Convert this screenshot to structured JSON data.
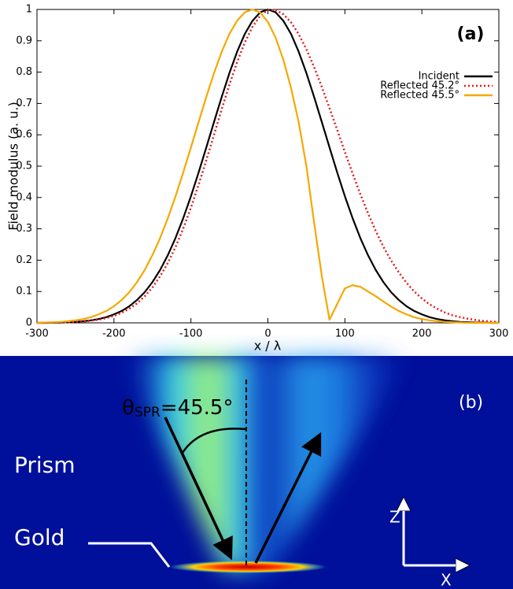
{
  "chart_data": {
    "type": "line",
    "title": "(a)",
    "x_label": "x / λ",
    "y_label": "Field modulus (a. u.)",
    "x": [
      -300,
      -290,
      -280,
      -270,
      -260,
      -250,
      -240,
      -230,
      -220,
      -210,
      -200,
      -190,
      -180,
      -170,
      -160,
      -150,
      -140,
      -130,
      -120,
      -110,
      -100,
      -90,
      -80,
      -70,
      -60,
      -50,
      -40,
      -30,
      -20,
      -10,
      0,
      10,
      20,
      30,
      40,
      50,
      60,
      70,
      80,
      90,
      100,
      110,
      120,
      130,
      140,
      150,
      160,
      170,
      180,
      190,
      200,
      210,
      220,
      230,
      240,
      250,
      260,
      270,
      280,
      290,
      300
    ],
    "series": [
      {
        "name": "Incident",
        "color": "#000000",
        "style": "solid",
        "values": [
          0,
          0,
          0.001,
          0.001,
          0.002,
          0.003,
          0.005,
          0.008,
          0.012,
          0.018,
          0.027,
          0.038,
          0.053,
          0.073,
          0.098,
          0.13,
          0.169,
          0.216,
          0.271,
          0.334,
          0.404,
          0.48,
          0.56,
          0.641,
          0.721,
          0.797,
          0.865,
          0.922,
          0.964,
          0.991,
          1,
          0.991,
          0.964,
          0.922,
          0.865,
          0.797,
          0.721,
          0.641,
          0.56,
          0.48,
          0.404,
          0.334,
          0.271,
          0.216,
          0.169,
          0.13,
          0.098,
          0.073,
          0.053,
          0.038,
          0.027,
          0.018,
          0.012,
          0.008,
          0.005,
          0.003,
          0.002,
          0.001,
          0.001,
          0,
          0
        ]
      },
      {
        "name": "Reflected 45.2°",
        "color": "#e41a1c",
        "style": "dotted",
        "values": [
          0,
          0,
          0.001,
          0.001,
          0.002,
          0.003,
          0.004,
          0.007,
          0.01,
          0.015,
          0.022,
          0.032,
          0.045,
          0.062,
          0.085,
          0.113,
          0.149,
          0.191,
          0.242,
          0.301,
          0.368,
          0.441,
          0.519,
          0.6,
          0.682,
          0.76,
          0.832,
          0.895,
          0.945,
          0.98,
          0.998,
          0.998,
          0.985,
          0.959,
          0.921,
          0.873,
          0.816,
          0.753,
          0.685,
          0.616,
          0.545,
          0.477,
          0.411,
          0.35,
          0.294,
          0.243,
          0.199,
          0.161,
          0.128,
          0.1,
          0.078,
          0.059,
          0.045,
          0.033,
          0.024,
          0.018,
          0.013,
          0.009,
          0.006,
          0.004,
          0.003
        ]
      },
      {
        "name": "Reflected 45.5°",
        "color": "#f5a800",
        "style": "solid",
        "values": [
          0,
          0.001,
          0.002,
          0.003,
          0.005,
          0.008,
          0.012,
          0.018,
          0.027,
          0.038,
          0.053,
          0.073,
          0.098,
          0.13,
          0.169,
          0.216,
          0.271,
          0.334,
          0.404,
          0.48,
          0.56,
          0.641,
          0.721,
          0.797,
          0.865,
          0.922,
          0.964,
          0.991,
          1,
          0.99,
          0.96,
          0.91,
          0.84,
          0.75,
          0.64,
          0.5,
          0.32,
          0.15,
          0.01,
          0.06,
          0.11,
          0.12,
          0.115,
          0.1,
          0.085,
          0.068,
          0.052,
          0.038,
          0.027,
          0.018,
          0.012,
          0.008,
          0.005,
          0.003,
          0.002,
          0.001,
          0,
          0,
          0,
          0,
          0
        ]
      }
    ],
    "xlim": [
      -300,
      300
    ],
    "ylim": [
      0,
      1
    ],
    "xticks": [
      -300,
      -200,
      -100,
      0,
      100,
      200,
      300
    ],
    "yticks": [
      0,
      0.1,
      0.2,
      0.3,
      0.4,
      0.5,
      0.6,
      0.7,
      0.8,
      0.9,
      1
    ],
    "legend": "upper right"
  },
  "panel_b": {
    "label": "(b)",
    "angle_symbol": "θ",
    "angle_subscript": "SPR",
    "angle_value": "=45.5°",
    "prism": "Prism",
    "gold": "Gold",
    "z_axis": "Z",
    "x_axis": "X"
  }
}
